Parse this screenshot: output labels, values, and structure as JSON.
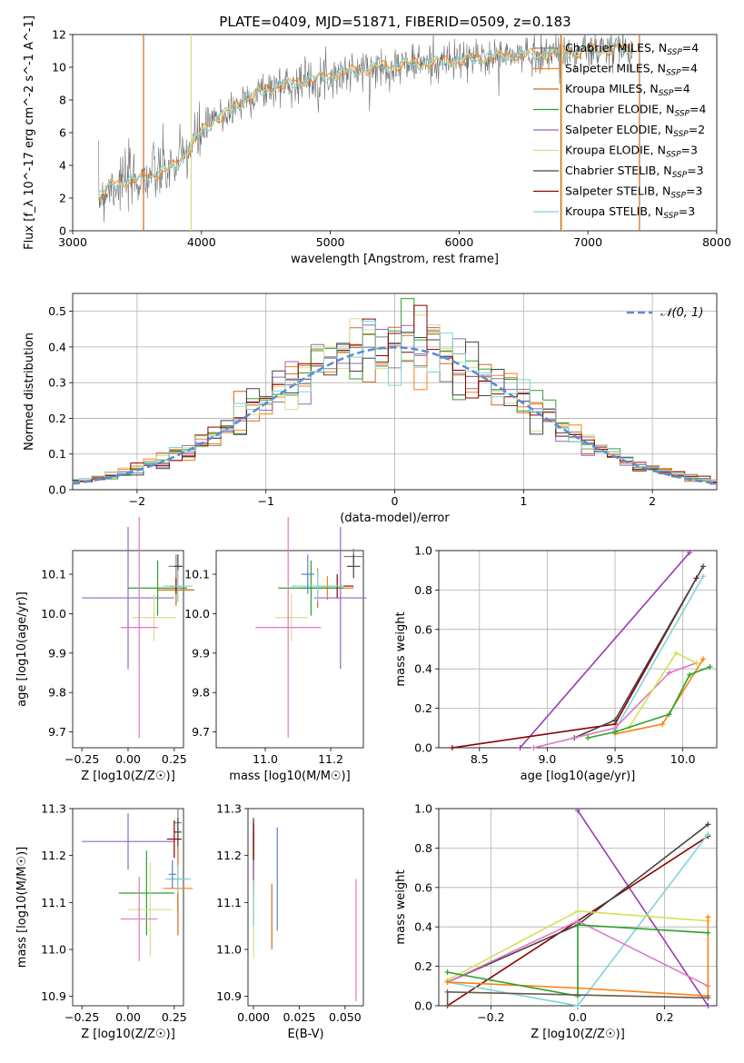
{
  "title": "PLATE=0409, MJD=51871, FIBERID=0509, z=0.183",
  "colors": {
    "Chabrier MILES": "#7f7f7f",
    "Salpeter MILES": "#ff7f0e",
    "Kroupa MILES": "#d2691e",
    "Chabrier ELODIE": "#2ca02c",
    "Salpeter ELODIE": "#9467bd",
    "Kroupa ELODIE": "#dbdb8d",
    "Chabrier STELIB": "#444444",
    "Salpeter STELIB": "#8b0000",
    "Kroupa STELIB": "#80d4d8"
  },
  "chart_data": [
    {
      "panel": "spectrum",
      "type": "line",
      "xlabel": "wavelength [Angstrom, rest frame]",
      "ylabel": "Flux [f_λ 10^-17 erg cm^-2 s^-1 A^-1]",
      "xlim": [
        3000,
        8000
      ],
      "ylim": [
        0,
        12
      ],
      "xticks": [
        "3000",
        "4000",
        "5000",
        "6000",
        "7000",
        "8000"
      ],
      "yticks": [
        "0",
        "2",
        "4",
        "6",
        "8",
        "10",
        "12"
      ],
      "grid": false,
      "legend_position": "top-right",
      "continuum_x": [
        3200,
        3300,
        3400,
        3500,
        3600,
        3700,
        3800,
        3900,
        4000,
        4100,
        4200,
        4300,
        4400,
        4500,
        4600,
        4700,
        4800,
        4900,
        5000,
        5200,
        5400,
        5600,
        5800,
        6000,
        6200,
        6400,
        6600,
        6800,
        7000,
        7200,
        7300
      ],
      "continuum_y": [
        2.0,
        2.8,
        3.0,
        3.1,
        3.4,
        3.6,
        4.0,
        5.0,
        6.0,
        6.8,
        7.2,
        7.8,
        8.3,
        8.6,
        8.9,
        9.0,
        9.2,
        9.3,
        9.5,
        9.8,
        10.0,
        10.2,
        10.3,
        10.4,
        10.6,
        10.7,
        10.8,
        10.9,
        11.0,
        11.1,
        11.1
      ],
      "series": [
        {
          "name": "Chabrier MILES, N_SSP=4"
        },
        {
          "name": "Salpeter MILES, N_SSP=4"
        },
        {
          "name": "Kroupa MILES, N_SSP=4"
        },
        {
          "name": "Chabrier ELODIE, N_SSP=4"
        },
        {
          "name": "Salpeter ELODIE, N_SSP=2"
        },
        {
          "name": "Kroupa ELODIE, N_SSP=3"
        },
        {
          "name": "Chabrier STELIB, N_SSP=3"
        },
        {
          "name": "Salpeter STELIB, N_SSP=3"
        },
        {
          "name": "Kroupa STELIB, N_SSP=3"
        }
      ]
    },
    {
      "panel": "residual-histogram",
      "type": "line",
      "xlabel": "(data-model)/error",
      "ylabel": "Normed distribution",
      "xlim": [
        -2.5,
        2.5
      ],
      "ylim": [
        0,
        0.55
      ],
      "xticks": [
        "−2",
        "−1",
        "0",
        "1",
        "2"
      ],
      "yticks": [
        "0.0",
        "0.1",
        "0.2",
        "0.3",
        "0.4",
        "0.5"
      ],
      "grid": true,
      "legend_position": "top-right",
      "legend": "𝒩(0, 1)"
    },
    {
      "panel": "age-vs-Z",
      "type": "scatter",
      "xlabel": "Z [log10(Z/Z☉)]",
      "ylabel": "age  [log10(age/yr)]",
      "xlim": [
        -0.3,
        0.3
      ],
      "ylim": [
        9.66,
        10.16
      ],
      "xticks": [
        "−0.25",
        "0.00",
        "0.25"
      ],
      "yticks": [
        "9.7",
        "9.8",
        "9.9",
        "10.0",
        "10.1"
      ],
      "points": [
        {
          "model": "Chabrier MILES",
          "x": 0.26,
          "y": 10.12,
          "xerr": 0.04,
          "yerr": 0.03
        },
        {
          "model": "Salpeter MILES",
          "x": 0.27,
          "y": 10.06,
          "xerr": 0.08,
          "yerr": 0.03
        },
        {
          "model": "Kroupa MILES",
          "x": 0.26,
          "y": 10.06,
          "xerr": 0.1,
          "yerr": 0.04
        },
        {
          "model": "Chabrier ELODIE",
          "x": 0.16,
          "y": 10.065,
          "xerr": 0.16,
          "yerr": 0.07
        },
        {
          "model": "Salpeter ELODIE",
          "x": 0.0,
          "y": 10.04,
          "xerr": 0.25,
          "yerr": 0.18
        },
        {
          "model": "Kroupa ELODIE",
          "x": 0.14,
          "y": 9.99,
          "xerr": 0.12,
          "yerr": 0.06
        },
        {
          "model": "Chabrier STELIB",
          "x": 0.27,
          "y": 10.12,
          "xerr": 0.02,
          "yerr": 0.03
        },
        {
          "model": "Salpeter STELIB",
          "x": 0.26,
          "y": 10.07,
          "xerr": 0.03,
          "yerr": 0.02
        },
        {
          "model": "Kroupa STELIB",
          "x": 0.27,
          "y": 10.07,
          "xerr": 0.08,
          "yerr": 0.04
        },
        {
          "model": "Kroupa ELODIE B",
          "x": 0.06,
          "y": 9.965,
          "xerr": 0.1,
          "yerr": 0.28
        }
      ]
    },
    {
      "panel": "age-vs-mass",
      "type": "scatter",
      "xlabel": "mass [log10(M/M☉)]",
      "xlim": [
        10.85,
        11.3
      ],
      "ylim": [
        9.66,
        10.16
      ],
      "xticks": [
        "11.0",
        "11.2"
      ],
      "yticks": [
        "9.7",
        "9.8",
        "9.9",
        "10.0",
        "10.1"
      ]
    },
    {
      "panel": "mass-weight-vs-age",
      "type": "line",
      "xlabel": "age  [log10(age/yr)]",
      "ylabel": "mass weight",
      "xlim": [
        8.2,
        10.25
      ],
      "ylim": [
        0,
        1.0
      ],
      "xticks": [
        "8.5",
        "9.0",
        "9.5",
        "10.0"
      ],
      "yticks": [
        "0.0",
        "0.2",
        "0.4",
        "0.6",
        "0.8",
        "1.0"
      ],
      "grid": true
    },
    {
      "panel": "mass-vs-Z",
      "type": "scatter",
      "xlabel": "Z [log10(Z/Z☉)]",
      "ylabel": "mass [log10(M/M☉)]",
      "xlim": [
        -0.3,
        0.3
      ],
      "ylim": [
        10.88,
        11.3
      ],
      "xticks": [
        "−0.25",
        "0.00",
        "0.25"
      ],
      "yticks": [
        "10.9",
        "11.0",
        "11.1",
        "11.2",
        "11.3"
      ]
    },
    {
      "panel": "mass-vs-EBV",
      "type": "scatter",
      "xlabel": "E(B-V)",
      "xlim": [
        -0.003,
        0.06
      ],
      "ylim": [
        10.88,
        11.3
      ],
      "xticks": [
        "0.000",
        "0.025",
        "0.050"
      ],
      "yticks": [
        "10.9",
        "11.0",
        "11.1",
        "11.2",
        "11.3"
      ]
    },
    {
      "panel": "mass-weight-vs-Z",
      "type": "line",
      "xlabel": "Z [log10(Z/Z☉)]",
      "ylabel": "mass weight",
      "xlim": [
        -0.32,
        0.32
      ],
      "ylim": [
        0,
        1.0
      ],
      "xticks": [
        "−0.2",
        "0.0",
        "0.2"
      ],
      "yticks": [
        "0.0",
        "0.2",
        "0.4",
        "0.6",
        "0.8",
        "1.0"
      ],
      "grid": true
    }
  ]
}
